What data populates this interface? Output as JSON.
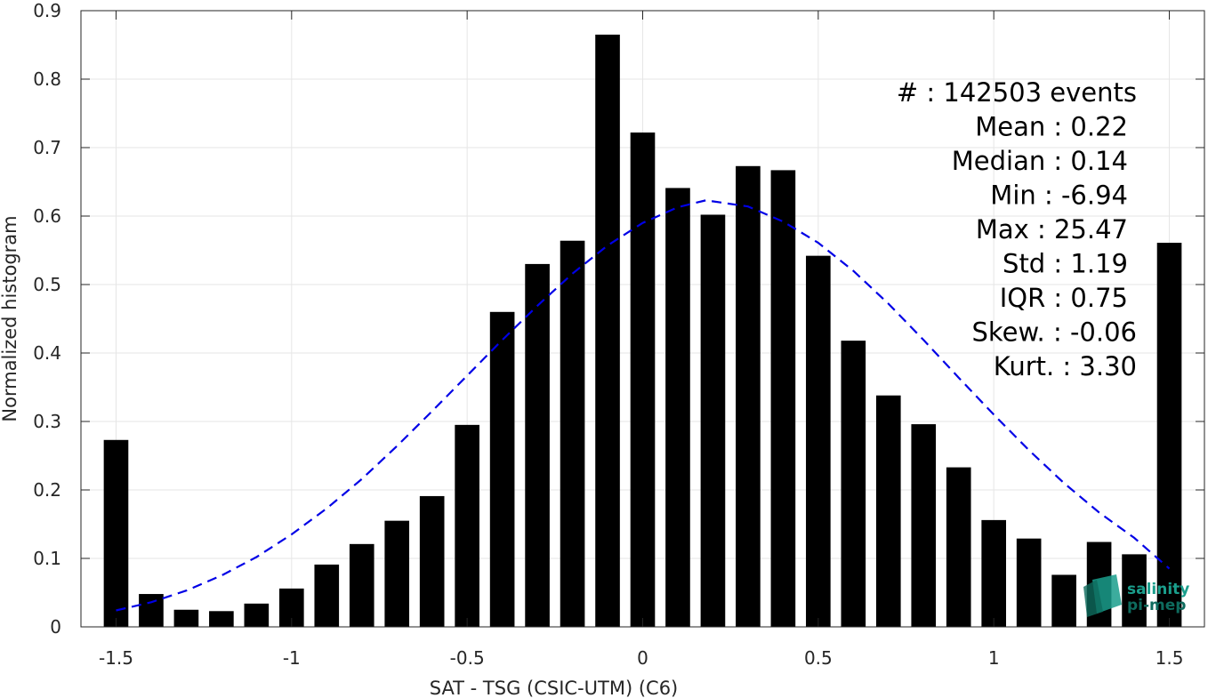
{
  "chart_data": {
    "type": "bar",
    "title": "",
    "xlabel": "SAT - TSG (CSIC-UTM) (C6)",
    "ylabel": "Normalized histogram",
    "xlim": [
      -1.6,
      1.6
    ],
    "ylim": [
      0,
      0.9
    ],
    "grid": true,
    "x_ticks": [
      -1.5,
      -1,
      -0.5,
      0,
      0.5,
      1,
      1.5
    ],
    "x_tick_labels": [
      "-1.5",
      "-1",
      "-0.5",
      "0",
      "0.5",
      "1",
      "1.5"
    ],
    "y_ticks": [
      0,
      0.1,
      0.2,
      0.3,
      0.4,
      0.5,
      0.6,
      0.7,
      0.8,
      0.9
    ],
    "y_tick_labels": [
      "0",
      "0.1",
      "0.2",
      "0.3",
      "0.4",
      "0.5",
      "0.6",
      "0.7",
      "0.8",
      "0.9"
    ],
    "bar_color": "#000000",
    "bar_width": 0.07,
    "x": [
      -1.5,
      -1.4,
      -1.3,
      -1.2,
      -1.1,
      -1.0,
      -0.9,
      -0.8,
      -0.7,
      -0.6,
      -0.5,
      -0.4,
      -0.3,
      -0.2,
      -0.1,
      0.0,
      0.1,
      0.2,
      0.3,
      0.4,
      0.5,
      0.6,
      0.7,
      0.8,
      0.9,
      1.0,
      1.1,
      1.2,
      1.3,
      1.4,
      1.5
    ],
    "values": [
      0.273,
      0.048,
      0.025,
      0.023,
      0.034,
      0.056,
      0.091,
      0.121,
      0.155,
      0.191,
      0.295,
      0.46,
      0.53,
      0.564,
      0.865,
      0.722,
      0.641,
      0.602,
      0.673,
      0.667,
      0.542,
      0.418,
      0.338,
      0.296,
      0.233,
      0.156,
      0.129,
      0.076,
      0.124,
      0.106,
      0.561
    ],
    "fit_curve": {
      "type": "gaussian",
      "color": "#0000e6",
      "style": "dashed",
      "x": [
        -1.5,
        -1.4,
        -1.3,
        -1.2,
        -1.1,
        -1.0,
        -0.9,
        -0.8,
        -0.7,
        -0.6,
        -0.5,
        -0.4,
        -0.3,
        -0.2,
        -0.1,
        0.0,
        0.1,
        0.18,
        0.3,
        0.4,
        0.5,
        0.6,
        0.7,
        0.8,
        0.9,
        1.0,
        1.1,
        1.2,
        1.3,
        1.4,
        1.5
      ],
      "y": [
        0.024,
        0.036,
        0.053,
        0.075,
        0.102,
        0.135,
        0.173,
        0.216,
        0.264,
        0.315,
        0.367,
        0.419,
        0.469,
        0.516,
        0.557,
        0.59,
        0.613,
        0.623,
        0.614,
        0.592,
        0.561,
        0.52,
        0.472,
        0.419,
        0.364,
        0.31,
        0.258,
        0.21,
        0.167,
        0.13,
        0.085
      ]
    },
    "stats": [
      {
        "label": "#  : 142503 events",
        "align": "right"
      },
      {
        "label": "Mean : 0.22"
      },
      {
        "label": "Median : 0.14"
      },
      {
        "label": "Min : -6.94"
      },
      {
        "label": "Max : 25.47"
      },
      {
        "label": "Std : 1.19"
      },
      {
        "label": "IQR : 0.75"
      },
      {
        "label": "Skew. : -0.06"
      },
      {
        "label": "Kurt. : 3.30"
      }
    ]
  },
  "logo": {
    "line1": "salinity",
    "line2": "pi-mep",
    "color_primary": "#1a9e8c",
    "color_dark": "#0e6b5e"
  }
}
